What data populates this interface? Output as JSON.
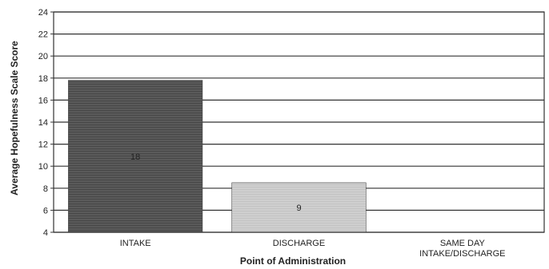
{
  "chart_data": {
    "type": "bar",
    "title": "",
    "xlabel": "Point of Administration",
    "ylabel": "Average Hopefulness Scale Score",
    "ylim": [
      4,
      24
    ],
    "yticks": [
      4,
      6,
      8,
      10,
      12,
      14,
      16,
      18,
      20,
      22,
      24
    ],
    "grid": true,
    "legend": "none",
    "categories": [
      [
        "INTAKE"
      ],
      [
        "DISCHARGE"
      ],
      [
        "SAME DAY",
        "INTAKE/DISCHARGE"
      ]
    ],
    "values": [
      17.8,
      8.5,
      null
    ],
    "data_labels": [
      "18",
      "9",
      ""
    ],
    "bar_colors": [
      "#5a5a5a",
      "#cfcfcf",
      "#ffffff"
    ]
  }
}
